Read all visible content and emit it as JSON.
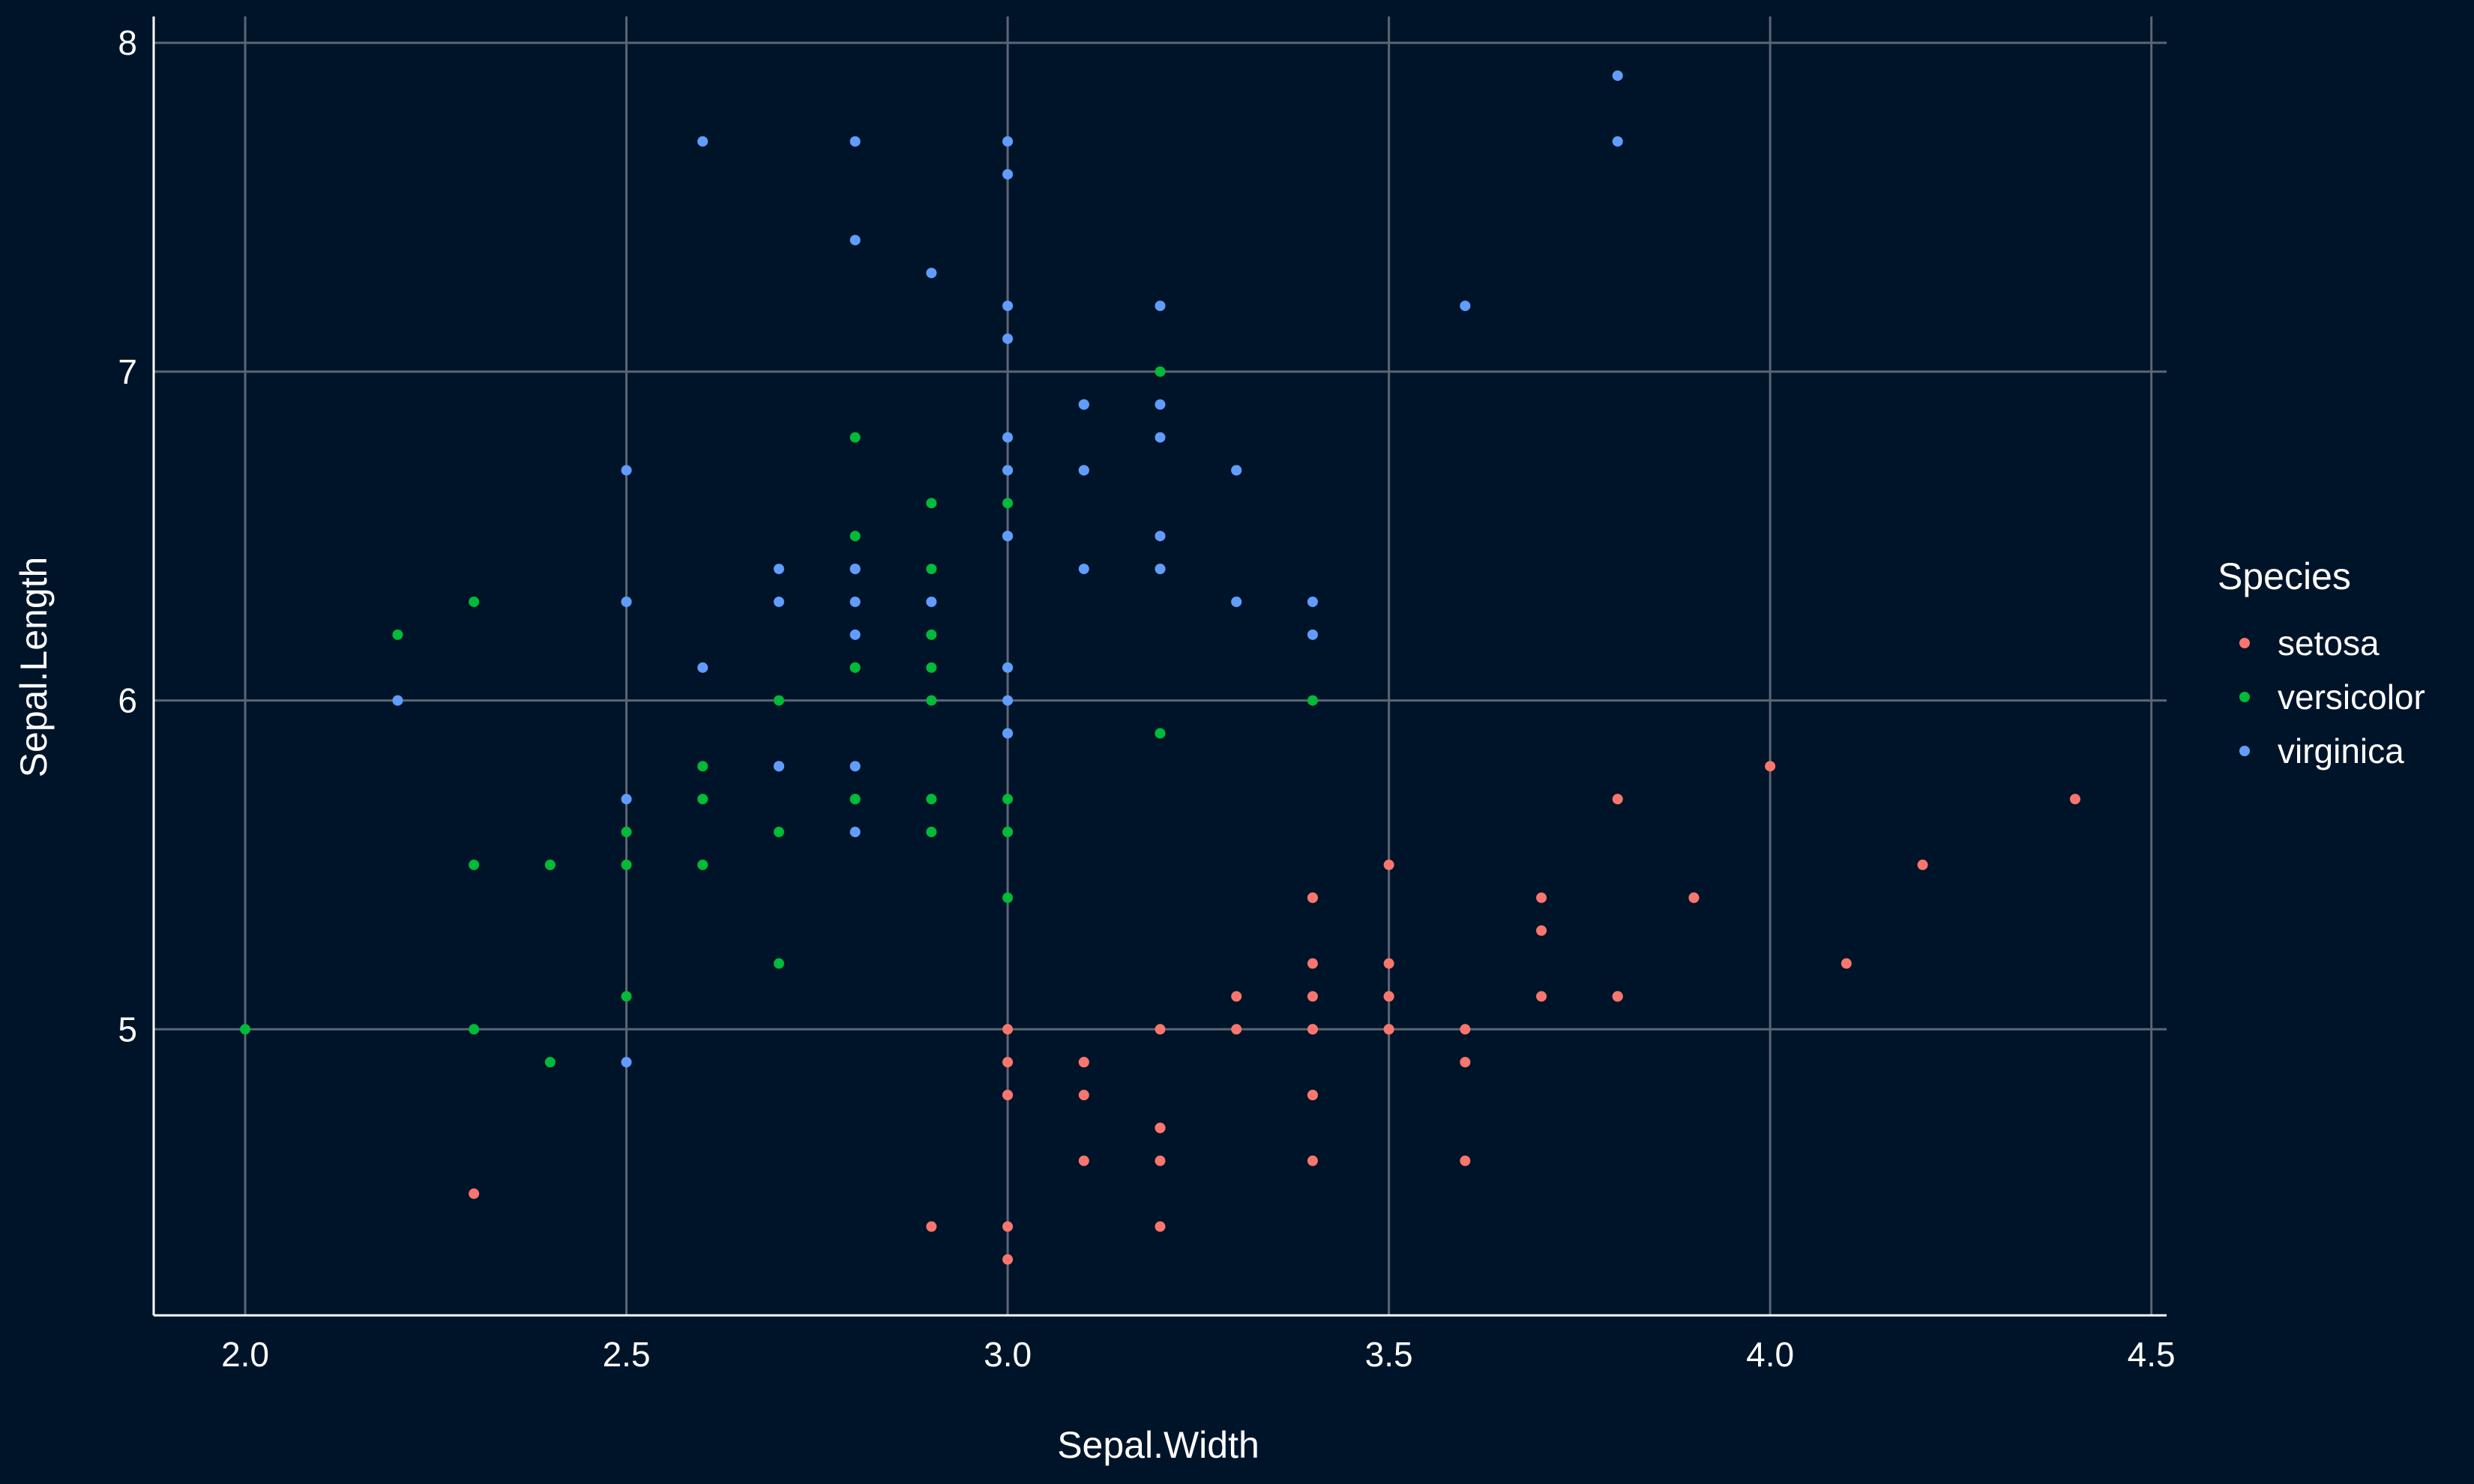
{
  "chart_data": {
    "type": "scatter",
    "title": "",
    "xlabel": "Sepal.Width",
    "ylabel": "Sepal.Length",
    "xlim": [
      1.88,
      4.52
    ],
    "ylim": [
      4.13,
      8.08
    ],
    "xticks": [
      2.0,
      2.5,
      3.0,
      3.5,
      4.0,
      4.5
    ],
    "xtick_labels": [
      "2.0",
      "2.5",
      "3.0",
      "3.5",
      "4.0",
      "4.5"
    ],
    "yticks": [
      5,
      6,
      7,
      8
    ],
    "ytick_labels": [
      "5",
      "6",
      "7",
      "8"
    ],
    "grid": true,
    "legend": {
      "title": "Species",
      "position": "right"
    },
    "background_color": "#001429",
    "grid_color": "#5b6674",
    "series": [
      {
        "name": "setosa",
        "color": "#f8766d",
        "points": [
          [
            3.5,
            5.1
          ],
          [
            3.0,
            4.9
          ],
          [
            3.2,
            4.7
          ],
          [
            3.1,
            4.6
          ],
          [
            3.6,
            5.0
          ],
          [
            3.9,
            5.4
          ],
          [
            3.4,
            4.6
          ],
          [
            3.4,
            5.0
          ],
          [
            2.9,
            4.4
          ],
          [
            3.1,
            4.9
          ],
          [
            3.7,
            5.4
          ],
          [
            3.4,
            4.8
          ],
          [
            3.0,
            4.8
          ],
          [
            3.0,
            4.3
          ],
          [
            4.0,
            5.8
          ],
          [
            4.4,
            5.7
          ],
          [
            3.9,
            5.4
          ],
          [
            3.5,
            5.1
          ],
          [
            3.8,
            5.7
          ],
          [
            3.8,
            5.1
          ],
          [
            3.4,
            5.4
          ],
          [
            3.7,
            5.1
          ],
          [
            3.6,
            4.6
          ],
          [
            3.3,
            5.1
          ],
          [
            3.4,
            4.8
          ],
          [
            3.0,
            5.0
          ],
          [
            3.4,
            5.0
          ],
          [
            3.5,
            5.2
          ],
          [
            3.4,
            5.2
          ],
          [
            3.2,
            4.7
          ],
          [
            3.1,
            4.8
          ],
          [
            3.4,
            5.4
          ],
          [
            4.1,
            5.2
          ],
          [
            4.2,
            5.5
          ],
          [
            3.1,
            4.9
          ],
          [
            3.2,
            5.0
          ],
          [
            3.5,
            5.5
          ],
          [
            3.6,
            4.9
          ],
          [
            3.0,
            4.4
          ],
          [
            3.4,
            5.1
          ],
          [
            3.5,
            5.0
          ],
          [
            2.3,
            4.5
          ],
          [
            3.2,
            4.4
          ],
          [
            3.5,
            5.0
          ],
          [
            3.8,
            5.1
          ],
          [
            3.0,
            4.8
          ],
          [
            3.8,
            5.1
          ],
          [
            3.2,
            4.6
          ],
          [
            3.7,
            5.3
          ],
          [
            3.3,
            5.0
          ]
        ]
      },
      {
        "name": "versicolor",
        "color": "#00ba38",
        "points": [
          [
            3.2,
            7.0
          ],
          [
            3.2,
            6.4
          ],
          [
            3.1,
            6.9
          ],
          [
            2.3,
            5.5
          ],
          [
            2.8,
            6.5
          ],
          [
            2.8,
            5.7
          ],
          [
            3.3,
            6.3
          ],
          [
            2.4,
            4.9
          ],
          [
            2.9,
            6.6
          ],
          [
            2.7,
            5.2
          ],
          [
            2.0,
            5.0
          ],
          [
            3.0,
            5.9
          ],
          [
            2.2,
            6.0
          ],
          [
            2.9,
            6.1
          ],
          [
            2.9,
            5.6
          ],
          [
            3.1,
            6.7
          ],
          [
            3.0,
            5.6
          ],
          [
            2.7,
            5.8
          ],
          [
            2.2,
            6.2
          ],
          [
            2.5,
            5.6
          ],
          [
            3.2,
            5.9
          ],
          [
            2.8,
            6.1
          ],
          [
            2.5,
            6.3
          ],
          [
            2.8,
            6.1
          ],
          [
            2.9,
            6.4
          ],
          [
            3.0,
            6.6
          ],
          [
            2.8,
            6.8
          ],
          [
            3.0,
            6.7
          ],
          [
            2.9,
            6.0
          ],
          [
            2.6,
            5.7
          ],
          [
            2.4,
            5.5
          ],
          [
            2.4,
            5.5
          ],
          [
            2.7,
            5.8
          ],
          [
            2.7,
            6.0
          ],
          [
            3.0,
            5.4
          ],
          [
            3.4,
            6.0
          ],
          [
            3.1,
            6.7
          ],
          [
            2.3,
            6.3
          ],
          [
            3.0,
            5.6
          ],
          [
            2.5,
            5.5
          ],
          [
            2.6,
            5.5
          ],
          [
            3.0,
            6.1
          ],
          [
            2.6,
            5.8
          ],
          [
            2.3,
            5.0
          ],
          [
            2.7,
            5.6
          ],
          [
            3.0,
            5.7
          ],
          [
            2.9,
            5.7
          ],
          [
            2.9,
            6.2
          ],
          [
            2.5,
            5.1
          ],
          [
            2.8,
            5.7
          ]
        ]
      },
      {
        "name": "virginica",
        "color": "#619cff",
        "points": [
          [
            3.3,
            6.3
          ],
          [
            2.7,
            5.8
          ],
          [
            3.0,
            7.1
          ],
          [
            2.9,
            6.3
          ],
          [
            3.0,
            6.5
          ],
          [
            3.0,
            7.6
          ],
          [
            2.5,
            4.9
          ],
          [
            2.9,
            7.3
          ],
          [
            2.5,
            6.7
          ],
          [
            3.6,
            7.2
          ],
          [
            3.2,
            6.5
          ],
          [
            2.7,
            6.4
          ],
          [
            3.0,
            6.8
          ],
          [
            2.5,
            5.7
          ],
          [
            2.8,
            5.8
          ],
          [
            3.2,
            6.4
          ],
          [
            3.0,
            6.5
          ],
          [
            3.8,
            7.7
          ],
          [
            2.6,
            7.7
          ],
          [
            2.2,
            6.0
          ],
          [
            3.2,
            6.9
          ],
          [
            2.8,
            5.6
          ],
          [
            2.8,
            7.7
          ],
          [
            2.7,
            6.3
          ],
          [
            3.3,
            6.7
          ],
          [
            3.2,
            7.2
          ],
          [
            2.8,
            6.2
          ],
          [
            3.0,
            6.1
          ],
          [
            2.8,
            6.4
          ],
          [
            3.0,
            7.2
          ],
          [
            2.8,
            7.4
          ],
          [
            3.8,
            7.9
          ],
          [
            2.8,
            6.4
          ],
          [
            2.8,
            6.3
          ],
          [
            2.6,
            6.1
          ],
          [
            3.0,
            7.7
          ],
          [
            3.4,
            6.3
          ],
          [
            3.1,
            6.4
          ],
          [
            3.0,
            6.0
          ],
          [
            3.1,
            6.9
          ],
          [
            3.1,
            6.7
          ],
          [
            3.1,
            6.9
          ],
          [
            2.7,
            5.8
          ],
          [
            3.2,
            6.8
          ],
          [
            3.3,
            6.7
          ],
          [
            3.0,
            6.7
          ],
          [
            2.5,
            6.3
          ],
          [
            3.0,
            6.5
          ],
          [
            3.4,
            6.2
          ],
          [
            3.0,
            5.9
          ]
        ]
      }
    ]
  }
}
